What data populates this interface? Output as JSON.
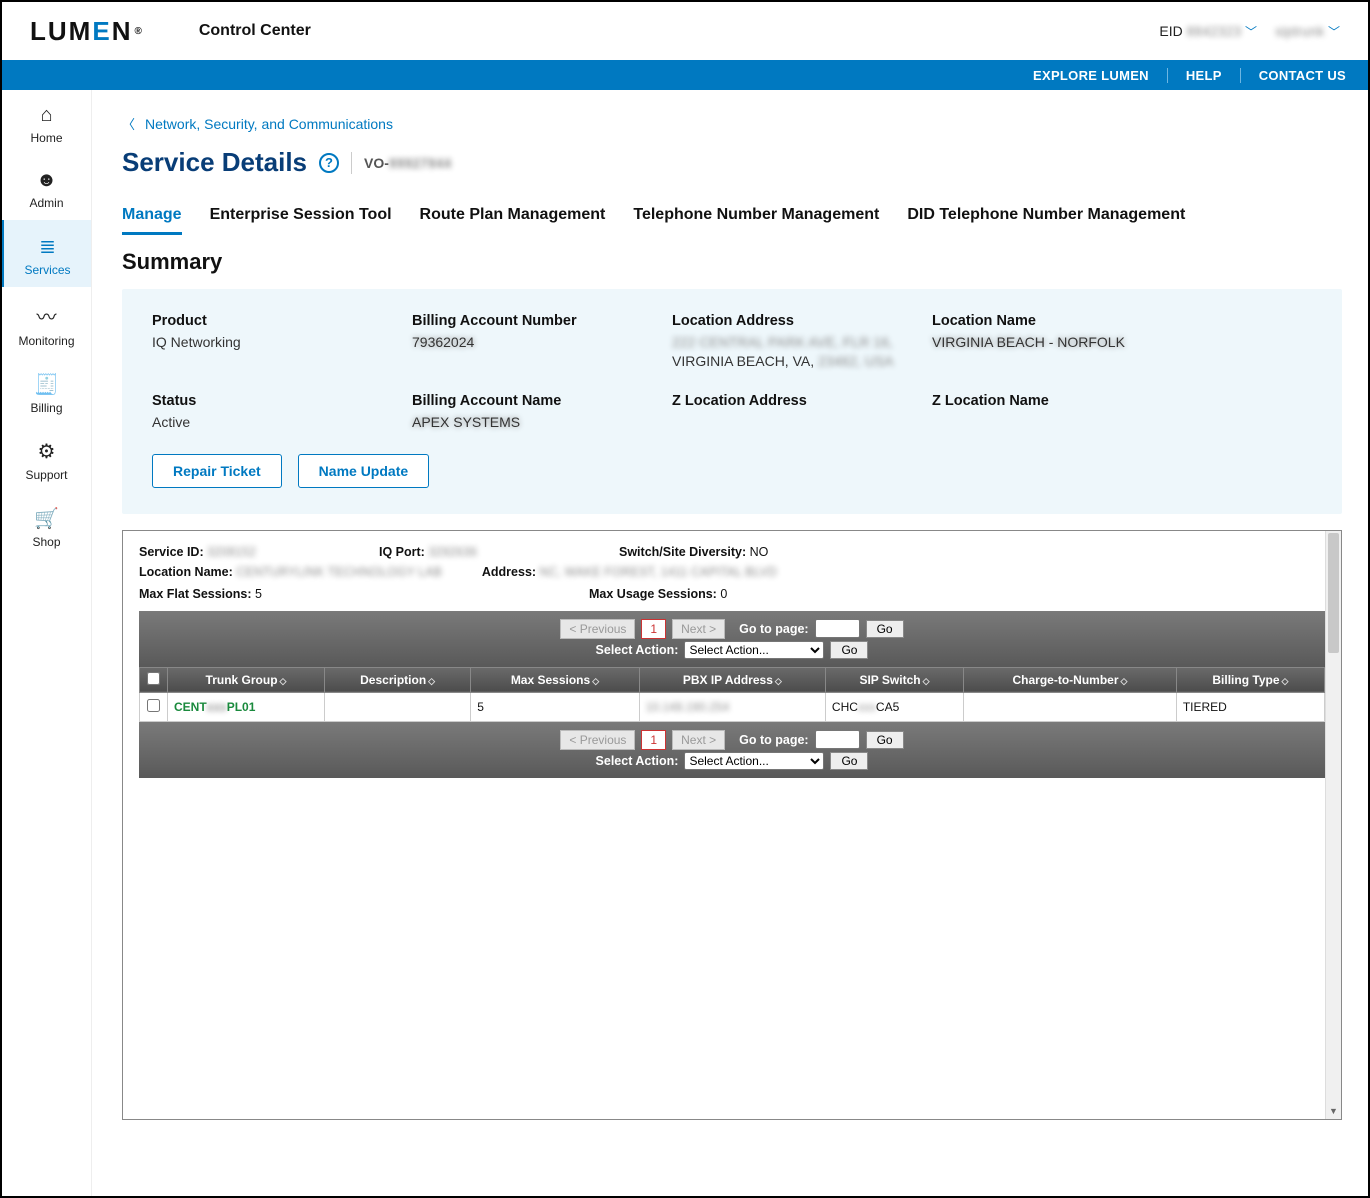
{
  "brand": {
    "name": "LUMEN",
    "product": "Control Center"
  },
  "header": {
    "eid_label": "EID",
    "eid_value": "8842323",
    "user": "siptrunk"
  },
  "bluebar": {
    "explore": "EXPLORE LUMEN",
    "help": "HELP",
    "contact": "CONTACT US"
  },
  "nav": [
    {
      "id": "home",
      "label": "Home",
      "icon": "⌂"
    },
    {
      "id": "admin",
      "label": "Admin",
      "icon": "☻"
    },
    {
      "id": "services",
      "label": "Services",
      "icon": "≣",
      "active": true
    },
    {
      "id": "monitoring",
      "label": "Monitoring",
      "icon": "〰"
    },
    {
      "id": "billing",
      "label": "Billing",
      "icon": "🧾"
    },
    {
      "id": "support",
      "label": "Support",
      "icon": "⚙"
    },
    {
      "id": "shop",
      "label": "Shop",
      "icon": "🛒"
    }
  ],
  "crumb": "Network, Security, and Communications",
  "page_title": "Service Details",
  "vo_prefix": "VO-",
  "vo_value": "99927944",
  "tabs": [
    "Manage",
    "Enterprise Session Tool",
    "Route Plan Management",
    "Telephone Number Management",
    "DID Telephone Number Management"
  ],
  "active_tab": "Manage",
  "section": "Summary",
  "summary": {
    "product": {
      "label": "Product",
      "value": "IQ Networking"
    },
    "ban": {
      "label": "Billing Account Number",
      "value": "79362024"
    },
    "loc_addr": {
      "label": "Location Address",
      "line1": "222 CENTRAL PARK AVE, FLR 16,",
      "line2": "VIRGINIA BEACH, VA, 23462, USA"
    },
    "loc_name": {
      "label": "Location Name",
      "value": "VIRGINIA BEACH - NORFOLK"
    },
    "status": {
      "label": "Status",
      "value": "Active"
    },
    "ban_name": {
      "label": "Billing Account Name",
      "value": "APEX SYSTEMS"
    },
    "zloc": {
      "label": "Z Location Address"
    },
    "zname": {
      "label": "Z Location Name"
    }
  },
  "buttons": {
    "repair": "Repair Ticket",
    "name_update": "Name Update"
  },
  "panel": {
    "service_id": {
      "label": "Service ID:",
      "value": "3208152"
    },
    "iq_port": {
      "label": "IQ Port:",
      "value": "3292636"
    },
    "switch": {
      "label": "Switch/Site Diversity:",
      "value": "NO"
    },
    "loc": {
      "label": "Location Name:",
      "value": "CENTURYLINK TECHNOLOGY LAB"
    },
    "addr": {
      "label": "Address:",
      "value": "NC, WAKE FOREST, 1411 CAPITAL BLVD"
    },
    "max_flat": {
      "label": "Max Flat Sessions:",
      "value": "5"
    },
    "max_usage": {
      "label": "Max Usage Sessions:",
      "value": "0"
    }
  },
  "pager": {
    "prev": "< Previous",
    "page": "1",
    "next": "Next >",
    "goto": "Go to page:",
    "go": "Go",
    "select_label": "Select Action:",
    "select_ph": "Select Action..."
  },
  "table": {
    "cols": [
      "Trunk Group",
      "Description",
      "Max Sessions",
      "PBX IP Address",
      "SIP Switch",
      "Charge-to-Number",
      "Billing Type"
    ],
    "rows": [
      {
        "trunk": "CENTxxxPL01",
        "desc": "",
        "max": "5",
        "pbx": "10.148.190.254",
        "sip": "CHCxxxCA5",
        "ctn": "",
        "bill": "TIERED"
      }
    ]
  }
}
